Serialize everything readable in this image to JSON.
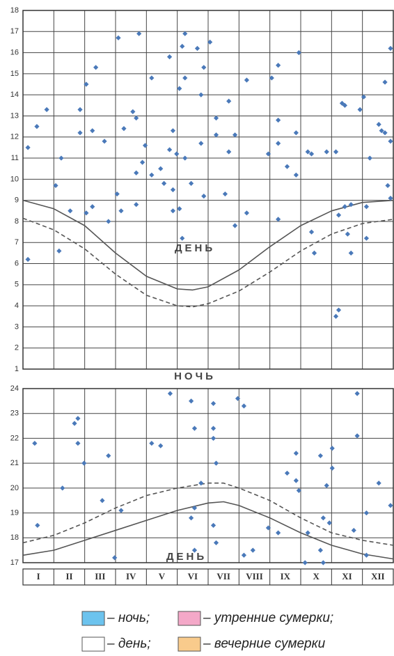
{
  "chart_data": [
    {
      "type": "scatter",
      "xlim": [
        0,
        12
      ],
      "xticks": [
        0,
        1,
        2,
        3,
        4,
        5,
        6,
        7,
        8,
        9,
        10,
        11,
        12
      ],
      "ylim": [
        1,
        18
      ],
      "yticks": [
        1,
        2,
        3,
        4,
        5,
        6,
        7,
        8,
        9,
        10,
        11,
        12,
        13,
        14,
        15,
        16,
        17,
        18
      ],
      "grid": true,
      "annotations": [
        "ДЕНЬ",
        "НОЧЬ"
      ],
      "series": [
        {
          "type": "scatter",
          "color": "#4a79b9",
          "x": [
            0.16,
            0.16,
            0.45,
            0.77,
            1.06,
            1.17,
            1.24,
            1.53,
            1.85,
            1.85,
            2.05,
            2.05,
            2.25,
            2.25,
            2.36,
            2.64,
            2.77,
            3.05,
            3.09,
            3.18,
            3.27,
            3.56,
            3.67,
            3.67,
            3.67,
            3.76,
            3.87,
            3.96,
            4.17,
            4.17,
            4.46,
            4.57,
            4.75,
            4.75,
            4.86,
            4.86,
            4.86,
            4.98,
            5.07,
            5.07,
            5.16,
            5.16,
            5.25,
            5.25,
            5.25,
            5.45,
            5.65,
            5.77,
            5.77,
            5.86,
            5.86,
            6.06,
            6.26,
            6.26,
            6.55,
            6.67,
            6.67,
            6.87,
            6.87,
            7.25,
            7.25,
            7.95,
            8.06,
            8.27,
            8.27,
            8.27,
            8.27,
            8.56,
            8.85,
            8.85,
            8.94,
            9.23,
            9.35,
            9.35,
            9.44,
            9.84,
            10.14,
            10.14,
            10.23,
            10.23,
            10.34,
            10.43,
            10.43,
            10.52,
            10.63,
            10.63,
            10.92,
            11.04,
            11.13,
            11.13,
            11.24,
            11.53,
            11.62,
            11.73,
            11.73,
            11.82,
            11.91,
            11.91,
            11.91
          ],
          "values": [
            11.5,
            6.2,
            12.5,
            13.3,
            9.7,
            6.6,
            11.0,
            8.5,
            12.2,
            13.3,
            14.5,
            8.4,
            12.3,
            8.7,
            15.3,
            11.8,
            8.0,
            9.3,
            16.7,
            8.5,
            12.4,
            13.2,
            12.9,
            8.8,
            10.3,
            16.9,
            10.8,
            11.6,
            14.8,
            10.2,
            10.5,
            9.8,
            15.8,
            11.4,
            12.3,
            9.5,
            8.5,
            11.2,
            14.3,
            8.6,
            7.2,
            16.3,
            14.8,
            11.0,
            16.9,
            9.8,
            16.2,
            14.0,
            11.7,
            15.3,
            9.2,
            16.5,
            12.9,
            12.1,
            9.3,
            13.7,
            11.3,
            7.8,
            12.1,
            14.7,
            8.4,
            11.2,
            14.8,
            15.4,
            12.8,
            11.7,
            8.1,
            10.6,
            12.2,
            10.2,
            16.0,
            11.3,
            7.5,
            11.2,
            6.5,
            11.3,
            11.3,
            3.5,
            3.8,
            8.3,
            13.6,
            13.5,
            8.7,
            7.4,
            8.8,
            6.5,
            13.3,
            13.9,
            8.7,
            7.2,
            11.0,
            12.6,
            12.3,
            12.2,
            14.6,
            9.7,
            11.8,
            16.2,
            9.1
          ]
        },
        {
          "type": "line",
          "color": "#555555",
          "dashed": false,
          "x": [
            0,
            1,
            2,
            3,
            4,
            5,
            5.5,
            6,
            7,
            8,
            9,
            10,
            11,
            12
          ],
          "values": [
            9.0,
            8.6,
            7.8,
            6.5,
            5.4,
            4.8,
            4.75,
            4.9,
            5.7,
            6.8,
            7.8,
            8.5,
            8.9,
            9.0
          ]
        },
        {
          "type": "line",
          "color": "#555555",
          "dashed": true,
          "x": [
            0,
            1,
            2,
            3,
            4,
            5,
            5.5,
            6,
            7,
            8,
            9,
            10,
            11,
            12
          ],
          "values": [
            8.15,
            7.6,
            6.7,
            5.5,
            4.5,
            4.0,
            3.95,
            4.1,
            4.7,
            5.6,
            6.6,
            7.4,
            7.9,
            8.1
          ]
        }
      ]
    },
    {
      "type": "scatter",
      "xlim": [
        0,
        12
      ],
      "xticks": [
        {
          "value": 0.5,
          "label": "I"
        },
        {
          "value": 1.5,
          "label": "II"
        },
        {
          "value": 2.5,
          "label": "III"
        },
        {
          "value": 3.5,
          "label": "IV"
        },
        {
          "value": 4.5,
          "label": "V"
        },
        {
          "value": 5.5,
          "label": "VI"
        },
        {
          "value": 6.5,
          "label": "VII"
        },
        {
          "value": 7.5,
          "label": "VIII"
        },
        {
          "value": 8.5,
          "label": "IX"
        },
        {
          "value": 9.5,
          "label": "X"
        },
        {
          "value": 10.5,
          "label": "XI"
        },
        {
          "value": 11.5,
          "label": "XII"
        }
      ],
      "ylim": [
        17,
        24
      ],
      "yticks": [
        17,
        18,
        19,
        20,
        21,
        22,
        23,
        24
      ],
      "grid": true,
      "annotations": [
        "ДЕНЬ"
      ],
      "series": [
        {
          "type": "scatter",
          "color": "#4a79b9",
          "x": [
            0.38,
            0.47,
            1.28,
            1.67,
            1.78,
            1.78,
            1.98,
            2.57,
            2.77,
            2.97,
            3.18,
            4.17,
            4.46,
            4.77,
            5.45,
            5.45,
            5.56,
            5.56,
            5.56,
            5.77,
            6.17,
            6.17,
            6.17,
            6.17,
            6.26,
            6.26,
            6.96,
            7.16,
            7.16,
            7.45,
            7.95,
            8.27,
            8.56,
            8.85,
            8.85,
            8.94,
            9.23,
            9.14,
            9.64,
            9.64,
            9.73,
            9.73,
            9.84,
            9.93,
            10.02,
            10.02,
            10.72,
            10.83,
            10.83,
            11.13,
            11.13,
            11.53,
            11.91
          ],
          "values": [
            21.8,
            18.5,
            20.0,
            22.6,
            22.8,
            21.8,
            21.0,
            19.5,
            21.3,
            17.2,
            19.1,
            21.8,
            21.7,
            23.8,
            23.5,
            18.8,
            22.4,
            19.2,
            17.5,
            20.2,
            23.4,
            22.4,
            22.0,
            18.5,
            21.0,
            17.8,
            23.6,
            23.3,
            17.3,
            17.5,
            18.4,
            18.2,
            20.6,
            21.4,
            20.3,
            19.9,
            18.2,
            17.0,
            21.3,
            17.5,
            18.8,
            17.0,
            20.1,
            18.6,
            21.6,
            20.8,
            18.3,
            23.8,
            22.1,
            19.0,
            17.3,
            20.2,
            19.3
          ]
        },
        {
          "type": "line",
          "color": "#555555",
          "dashed": false,
          "x": [
            0,
            1,
            2,
            3,
            4,
            5,
            6,
            6.5,
            7,
            8,
            9,
            10,
            11,
            12
          ],
          "values": [
            17.3,
            17.5,
            17.9,
            18.3,
            18.7,
            19.1,
            19.4,
            19.45,
            19.3,
            18.8,
            18.2,
            17.7,
            17.35,
            17.15
          ]
        },
        {
          "type": "line",
          "color": "#555555",
          "dashed": true,
          "x": [
            0,
            1,
            2,
            3,
            4,
            5,
            6,
            6.5,
            7,
            8,
            9,
            10,
            11,
            12
          ],
          "values": [
            17.8,
            18.1,
            18.6,
            19.2,
            19.7,
            20.0,
            20.2,
            20.2,
            20.0,
            19.5,
            18.8,
            18.2,
            17.9,
            17.7
          ]
        }
      ]
    }
  ],
  "legend": [
    {
      "label": "– ночь;",
      "color": "#6cc3ee"
    },
    {
      "label": "– утренние сумерки;",
      "color": "#f4a8c8"
    },
    {
      "label": "– день;",
      "color": "#ffffff"
    },
    {
      "label": "– вечерние сумерки",
      "color": "#f9cb8c"
    }
  ]
}
